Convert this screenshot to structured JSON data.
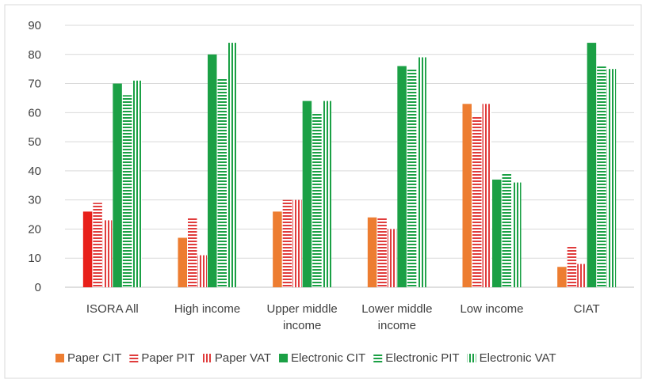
{
  "chart_data": {
    "type": "bar",
    "title": "",
    "xlabel": "",
    "ylabel": "",
    "ylim": [
      0,
      90
    ],
    "yticks": [
      0,
      10,
      20,
      30,
      40,
      50,
      60,
      70,
      80,
      90
    ],
    "grid": true,
    "legend_position": "bottom",
    "categories": [
      [
        "ISORA All"
      ],
      [
        "High income"
      ],
      [
        "Upper middle",
        "income"
      ],
      [
        "Lower middle",
        "income"
      ],
      [
        "Low income"
      ],
      [
        "CIAT"
      ]
    ],
    "series": [
      {
        "name": "Paper CIT",
        "color": "#ED7D31",
        "pattern": "solid",
        "values": [
          26,
          17,
          26,
          24,
          63,
          7
        ]
      },
      {
        "name": "Paper PIT",
        "color": "#E03C3C",
        "pattern": "hstripe",
        "values": [
          29,
          24,
          30,
          24,
          59,
          14
        ]
      },
      {
        "name": "Paper VAT",
        "color": "#E03C3C",
        "pattern": "vstripe",
        "values": [
          23,
          11,
          30,
          20,
          63,
          8
        ]
      },
      {
        "name": "Electronic CIT",
        "color": "#1BA045",
        "pattern": "solid",
        "values": [
          70,
          80,
          64,
          76,
          37,
          84
        ]
      },
      {
        "name": "Electronic PIT",
        "color": "#1BA045",
        "pattern": "hstripe",
        "values": [
          66,
          72,
          60,
          75,
          39,
          76
        ]
      },
      {
        "name": "Electronic VAT",
        "color": "#1BA045",
        "pattern": "vstripe",
        "values": [
          71,
          84,
          64,
          79,
          36,
          75
        ]
      }
    ],
    "first_bar_color_override": "#E8201A"
  }
}
